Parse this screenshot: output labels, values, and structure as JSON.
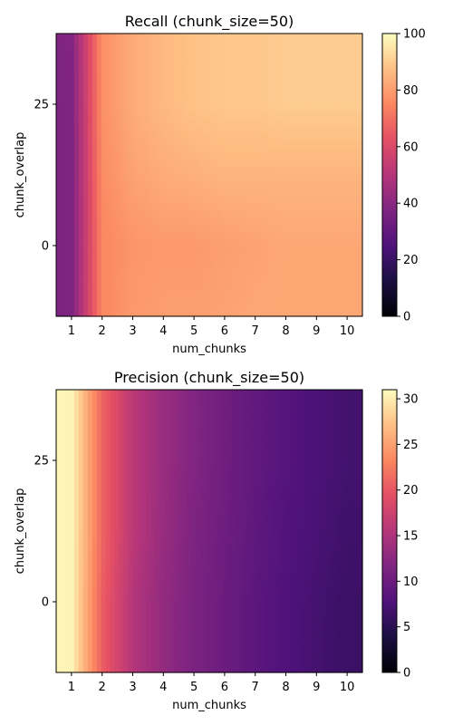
{
  "chart_data": [
    {
      "type": "heatmap",
      "title": "Recall (chunk_size=50)",
      "xlabel": "num_chunks",
      "ylabel": "chunk_overlap",
      "x_ticks": [
        "1",
        "2",
        "3",
        "4",
        "5",
        "6",
        "7",
        "8",
        "9",
        "10"
      ],
      "y_ticks": [
        "25",
        "0"
      ],
      "x": [
        1,
        2,
        3,
        4,
        5,
        6,
        7,
        8,
        9,
        10
      ],
      "y": [
        -12.5,
        0,
        12.5,
        25,
        37.5
      ],
      "values": [
        [
          37,
          75,
          79,
          80,
          80,
          81,
          82,
          82,
          82,
          82
        ],
        [
          37,
          75,
          78,
          79,
          79,
          80,
          81,
          82,
          82,
          82
        ],
        [
          37,
          76,
          81,
          83,
          84,
          85,
          85,
          85,
          85,
          85
        ],
        [
          37,
          77,
          83,
          86,
          88,
          89,
          89,
          90,
          90,
          90
        ],
        [
          38,
          77,
          83,
          86,
          88,
          89,
          89,
          90,
          90,
          90
        ]
      ],
      "colorbar": {
        "min": 0,
        "max": 100,
        "ticks": [
          "0",
          "20",
          "40",
          "60",
          "80",
          "100"
        ]
      },
      "colormap": "magma",
      "grid": false
    },
    {
      "type": "heatmap",
      "title": "Precision (chunk_size=50)",
      "xlabel": "num_chunks",
      "ylabel": "chunk_overlap",
      "x_ticks": [
        "1",
        "2",
        "3",
        "4",
        "5",
        "6",
        "7",
        "8",
        "9",
        "10"
      ],
      "y_ticks": [
        "25",
        "0"
      ],
      "x": [
        1,
        2,
        3,
        4,
        5,
        6,
        7,
        8,
        9,
        10
      ],
      "y": [
        -12.5,
        0,
        12.5,
        25,
        37.5
      ],
      "values": [
        [
          30.5,
          20.5,
          15.5,
          13.0,
          11.3,
          10.0,
          8.8,
          7.8,
          7.0,
          6.2
        ],
        [
          30.5,
          20.5,
          15.5,
          13.0,
          11.3,
          10.0,
          8.8,
          7.8,
          7.0,
          6.3
        ],
        [
          30.5,
          21.0,
          16.0,
          13.3,
          11.5,
          10.2,
          9.0,
          8.0,
          7.3,
          6.6
        ],
        [
          30.5,
          21.0,
          16.0,
          13.5,
          11.7,
          10.4,
          9.2,
          8.2,
          7.5,
          6.9
        ],
        [
          30.5,
          21.0,
          16.0,
          13.5,
          11.7,
          10.4,
          9.2,
          8.2,
          7.5,
          6.9
        ]
      ],
      "colorbar": {
        "min": 0,
        "max": 31,
        "ticks": [
          "0",
          "5",
          "10",
          "15",
          "20",
          "25",
          "30"
        ]
      },
      "colormap": "magma",
      "grid": false
    }
  ]
}
